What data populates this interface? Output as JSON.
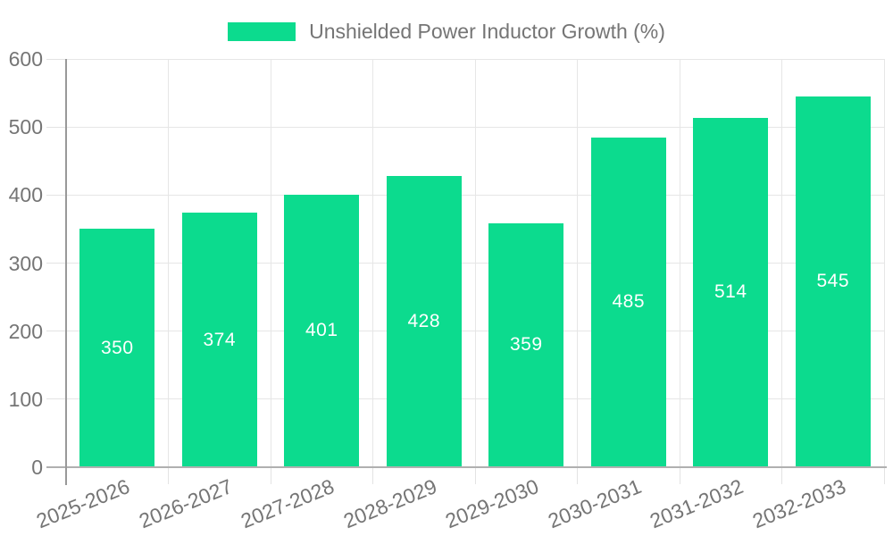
{
  "legend": {
    "label": "Unshielded Power Inductor Growth (%)"
  },
  "chart_data": {
    "type": "bar",
    "title": "Unshielded Power Inductor Growth (%)",
    "categories": [
      "2025-2026",
      "2026-2027",
      "2027-2028",
      "2028-2029",
      "2029-2030",
      "2030-2031",
      "2031-2032",
      "2032-2033"
    ],
    "values": [
      350,
      374,
      401,
      428,
      359,
      485,
      514,
      545
    ],
    "xlabel": "",
    "ylabel": "",
    "ylim": [
      0,
      600
    ],
    "yticks": [
      0,
      100,
      200,
      300,
      400,
      500,
      600
    ],
    "grid": "on",
    "legend_position": "top",
    "bar_color": "#0cdb8e",
    "value_label_color": "#ffffff",
    "axis_text_color": "#757575",
    "grid_color": "#e6e6e6",
    "tick_color": "#e3e3e3",
    "x_axis_line_color": "#b0b0b0",
    "y_axis_line_color": "#999999"
  }
}
